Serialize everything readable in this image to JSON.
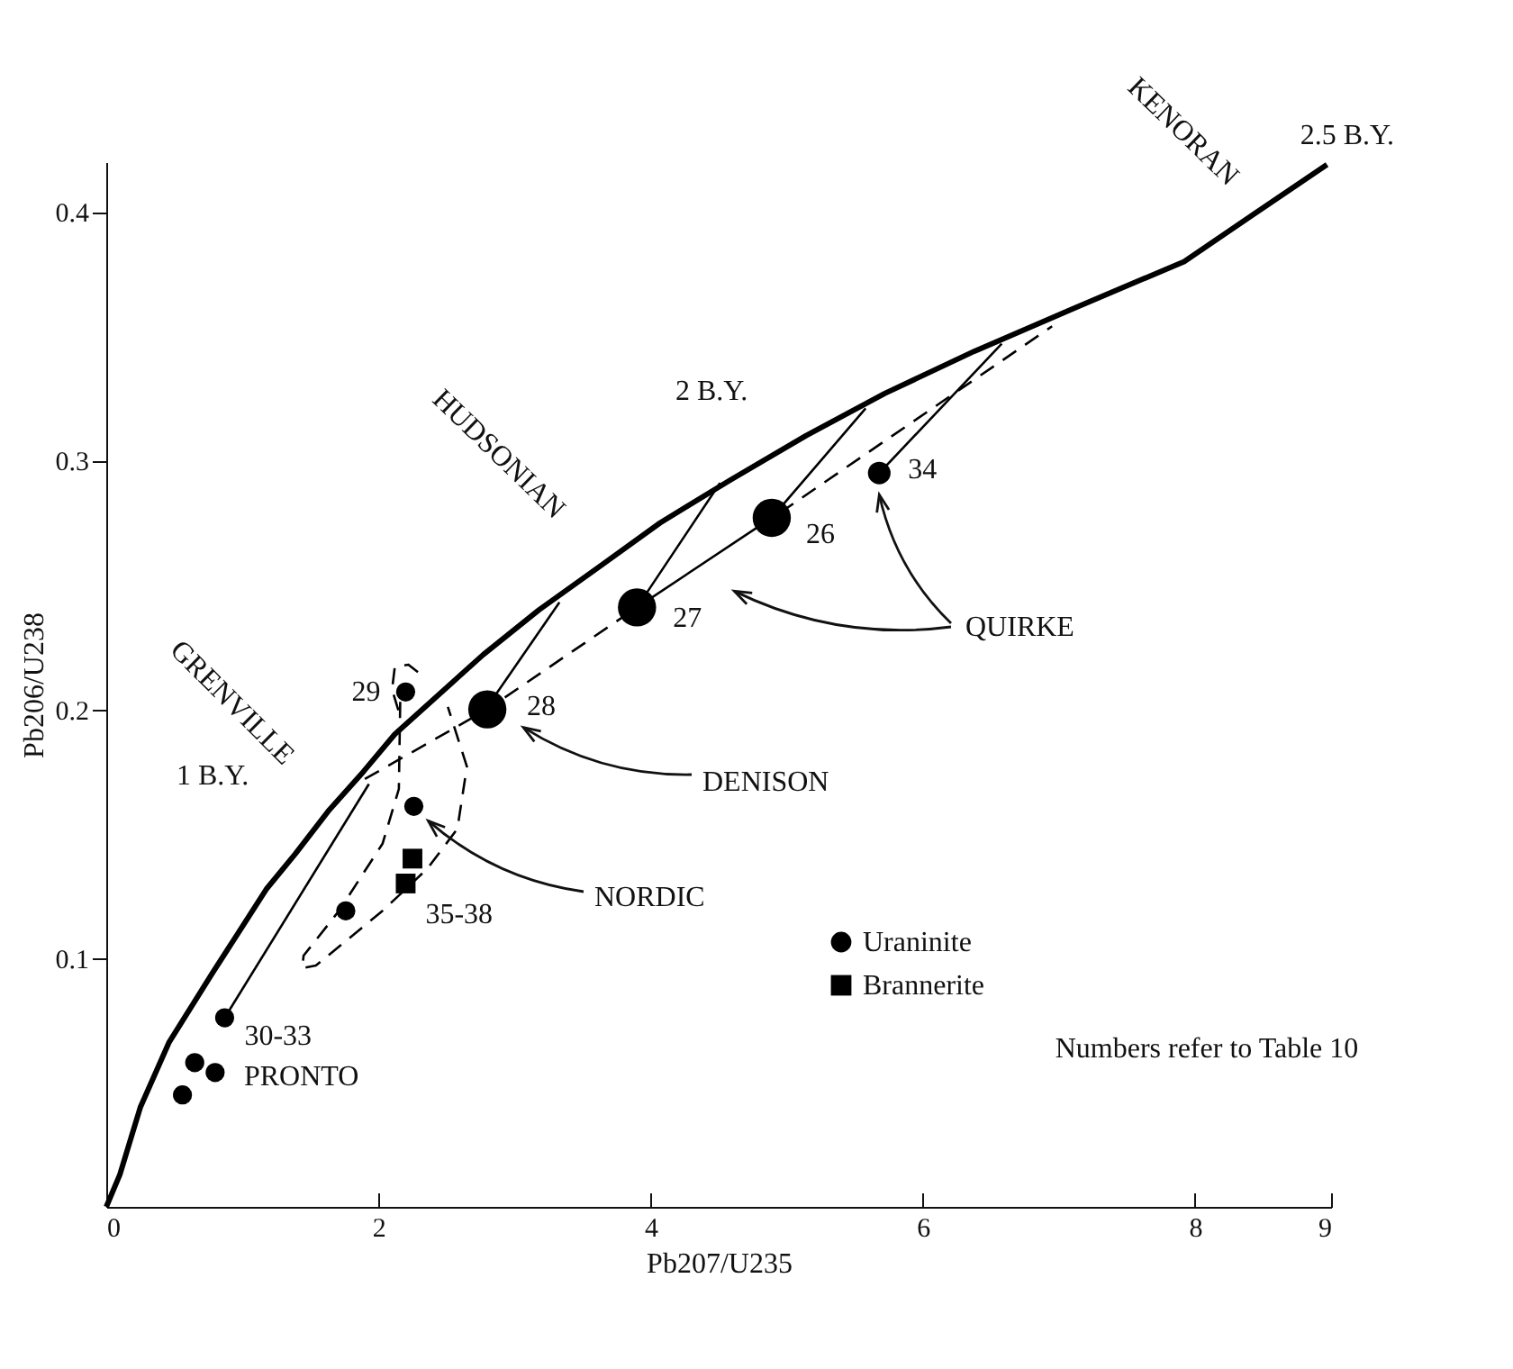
{
  "chart_data": {
    "type": "scatter",
    "xlabel": "Pb207/U235",
    "ylabel": "Pb206/U238",
    "xlim": [
      0,
      9
    ],
    "ylim": [
      0,
      0.42
    ],
    "xticks": [
      0,
      2,
      4,
      6,
      8,
      9
    ],
    "yticks": [
      0.1,
      0.2,
      0.3,
      0.4
    ],
    "legend": "right",
    "series": [
      {
        "type": "line",
        "color": "#000000",
        "line_style": "solid",
        "x": [
          0,
          0.1,
          0.25,
          0.46,
          0.78,
          1.18,
          1.39,
          1.63,
          1.89,
          2.12,
          2.77,
          3.18,
          3.64,
          4.07,
          4.58,
          5.14,
          5.72,
          6.38,
          7.1,
          7.92,
          8.43,
          8.97
        ],
        "values": [
          0,
          0.013,
          0.04,
          0.066,
          0.094,
          0.128,
          0.142,
          0.159,
          0.175,
          0.19,
          0.222,
          0.24,
          0.258,
          0.275,
          0.292,
          0.31,
          0.327,
          0.344,
          0.361,
          0.38,
          0.399,
          0.419
        ]
      },
      {
        "type": "line",
        "color": "#000000",
        "line_style": "solid",
        "x": [
          0.87,
          1.93
        ],
        "values": [
          0.076,
          0.17
        ]
      },
      {
        "type": "line",
        "color": "#000000",
        "line_style": "solid",
        "x": [
          2.85,
          3.33
        ],
        "values": [
          0.205,
          0.243
        ]
      },
      {
        "type": "line",
        "color": "#000000",
        "line_style": "solid",
        "x": [
          4.51,
          3.9,
          4.89,
          5.58
        ],
        "values": [
          0.291,
          0.241,
          0.277,
          0.321
        ]
      },
      {
        "type": "line",
        "color": "#000000",
        "line_style": "solid",
        "x": [
          5.68,
          6.58
        ],
        "values": [
          0.295,
          0.347
        ]
      },
      {
        "type": "line",
        "color": "#000000",
        "line_style": "dashed",
        "x": [
          4.95,
          6.95
        ],
        "values": [
          0.279,
          0.354
        ]
      },
      {
        "type": "line",
        "color": "#000000",
        "line_style": "dashed",
        "x": [
          1.9,
          2.8,
          3.9
        ],
        "values": [
          0.172,
          0.2,
          0.241
        ]
      },
      {
        "type": "line",
        "color": "#000000",
        "line_style": "dashed",
        "x": [
          2.16,
          2.15,
          2.03,
          1.71,
          1.45,
          1.44,
          1.54,
          2.03,
          2.36,
          2.58,
          2.65,
          2.51
        ],
        "values": [
          0.203,
          0.168,
          0.146,
          0.119,
          0.101,
          0.096,
          0.097,
          0.119,
          0.136,
          0.152,
          0.177,
          0.201
        ]
      },
      {
        "type": "line",
        "color": "#000000",
        "line_style": "dashed",
        "x": [
          2.29,
          2.22,
          2.12,
          2.1,
          2.15
        ],
        "values": [
          0.215,
          0.218,
          0.217,
          0.208,
          0.199
        ]
      },
      {
        "type": "bubble",
        "name": "Uraninite",
        "color": "#000000",
        "marker": "circle",
        "x": [
          2.8,
          3.9,
          4.89,
          2.2,
          5.68,
          0.87,
          0.65,
          0.8,
          0.56,
          2.26,
          1.76
        ],
        "values": [
          0.2,
          0.241,
          0.277,
          0.207,
          0.295,
          0.076,
          0.058,
          0.054,
          0.045,
          0.161,
          0.119
        ],
        "sizes": [
          1,
          1,
          1,
          0.25,
          0.35,
          0.25,
          0.25,
          0.25,
          0.25,
          0.25,
          0.25
        ]
      },
      {
        "name": "Brannerite",
        "color": "#000000",
        "marker": "square",
        "x": [
          2.25,
          2.2
        ],
        "values": [
          0.14,
          0.13
        ]
      }
    ],
    "annotations": [
      "GRENVILLE",
      "HUDSONIAN",
      "KENORAN",
      {
        "text": "1 B.Y.",
        "x": 1.63,
        "y": 0.159
      },
      {
        "text": "2 B.Y.",
        "x": 4.58,
        "y": 0.292
      },
      {
        "text": "2.5 B.Y.",
        "x": 8.43,
        "y": 0.399
      },
      {
        "text": "29",
        "x": 2.2,
        "y": 0.207
      },
      {
        "text": "28",
        "x": 2.8,
        "y": 0.2
      },
      {
        "text": "27",
        "x": 3.9,
        "y": 0.241
      },
      {
        "text": "26",
        "x": 4.89,
        "y": 0.277
      },
      {
        "text": "34",
        "x": 5.68,
        "y": 0.295
      },
      {
        "text": "30-33",
        "x": 0.87,
        "y": 0.076
      },
      {
        "text": "PRONTO",
        "x": 0.8,
        "y": 0.054
      },
      {
        "text": "35-38",
        "x": 2.2,
        "y": 0.13
      },
      "DENISON",
      "NORDIC",
      "QUIRKE",
      "Numbers refer to Table 10"
    ]
  }
}
